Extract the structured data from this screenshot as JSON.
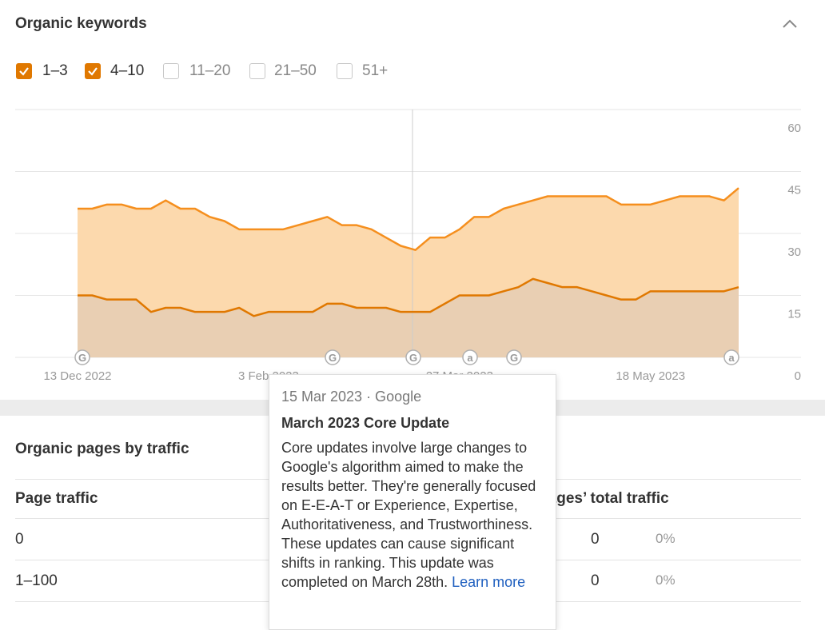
{
  "panel_title": "Organic keywords",
  "other_ranges": [
    "11–20",
    "21–50",
    "51+"
  ],
  "chart_data": {
    "type": "stacked-area",
    "categories": [
      "13 Dec 2022",
      null,
      null,
      null,
      null,
      null,
      null,
      null,
      null,
      null,
      null,
      null,
      null,
      "3 Feb 2023",
      null,
      null,
      null,
      null,
      null,
      null,
      null,
      null,
      null,
      null,
      null,
      null,
      "27 Mar 2023",
      null,
      null,
      null,
      null,
      null,
      null,
      null,
      null,
      null,
      null,
      null,
      null,
      "18 May 2023",
      null,
      null,
      null,
      null,
      null,
      null
    ],
    "series": [
      {
        "name": "1–3",
        "color": "#e07800",
        "values": [
          15,
          15,
          14,
          14,
          14,
          11,
          12,
          12,
          11,
          11,
          11,
          12,
          10,
          11,
          11,
          11,
          11,
          13,
          13,
          12,
          12,
          12,
          11,
          11,
          11,
          13,
          15,
          15,
          15,
          16,
          17,
          19,
          18,
          17,
          17,
          16,
          15,
          14,
          14,
          16,
          16,
          16,
          16,
          16,
          16,
          17
        ]
      },
      {
        "name": "4–10",
        "color": "#f58f1e",
        "values": [
          21,
          21,
          23,
          23,
          22,
          25,
          26,
          24,
          25,
          23,
          22,
          19,
          21,
          20,
          20,
          21,
          22,
          21,
          19,
          20,
          19,
          17,
          16,
          15,
          18,
          16,
          16,
          19,
          19,
          20,
          20,
          19,
          21,
          22,
          22,
          23,
          24,
          23,
          23,
          21,
          22,
          23,
          23,
          23,
          22,
          24
        ]
      }
    ],
    "ylim": [
      0,
      60
    ],
    "yticks": [
      0,
      15,
      30,
      45,
      60
    ],
    "grid": true,
    "events": [
      "G",
      "G",
      "G",
      "a",
      "G",
      "a"
    ]
  },
  "tooltip": {
    "date": "15 Mar 2023 · Google",
    "title": "March 2023 Core Update",
    "body": "Core updates involve large changes to Google's algorithm aimed to make the results better. They're generally focused on E-E-A-T or Experience, Expertise, Authoritativeness, and Trustworthiness. These updates can cause significant shifts in ranking. This update was completed on March 28th.",
    "link": "Learn more"
  },
  "pages_section": {
    "title": "Organic pages by traffic",
    "columns": [
      "Page traffic",
      "Pages’ total traffic"
    ],
    "rows": [
      [
        "0",
        "0",
        "0%"
      ],
      [
        "1–100",
        "0",
        "0%"
      ]
    ]
  }
}
